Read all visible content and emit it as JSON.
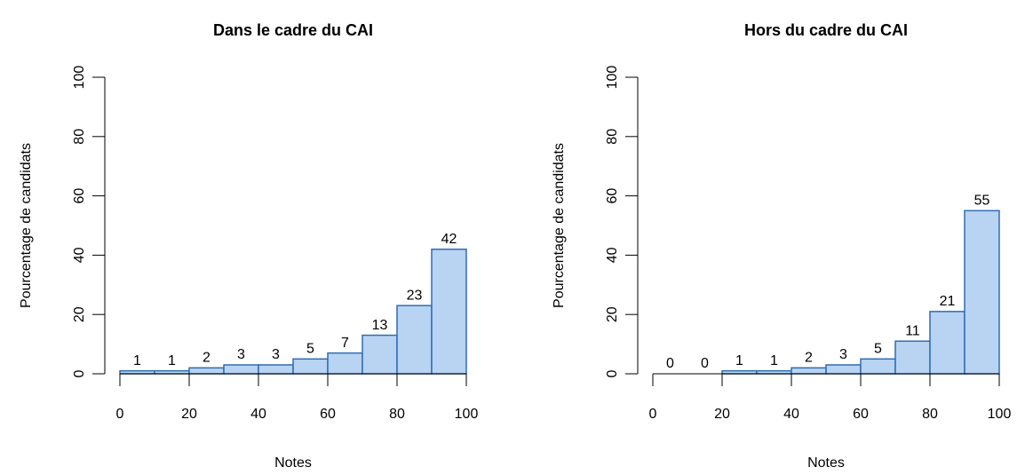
{
  "chart_data": [
    {
      "type": "histogram",
      "title": "Dans le cadre du CAI",
      "x_label": "Notes",
      "y_label": "Pourcentage de candidats",
      "bins": [
        0,
        10,
        20,
        30,
        40,
        50,
        60,
        70,
        80,
        90,
        100
      ],
      "values": [
        1,
        1,
        2,
        3,
        3,
        5,
        7,
        13,
        23,
        42
      ],
      "xlim": [
        0,
        100
      ],
      "ylim": [
        0,
        100
      ],
      "xticks": [
        0,
        20,
        40,
        60,
        80,
        100
      ],
      "yticks": [
        0,
        20,
        40,
        60,
        80,
        100
      ],
      "color": "#b9d3f3",
      "edge_color": "#2e6db4"
    },
    {
      "type": "histogram",
      "title": "Hors du cadre du CAI",
      "x_label": "Notes",
      "y_label": "Pourcentage de candidats",
      "bins": [
        0,
        10,
        20,
        30,
        40,
        50,
        60,
        70,
        80,
        90,
        100
      ],
      "values": [
        0,
        0,
        1,
        1,
        2,
        3,
        5,
        11,
        21,
        55
      ],
      "xlim": [
        0,
        100
      ],
      "ylim": [
        0,
        100
      ],
      "xticks": [
        0,
        20,
        40,
        60,
        80,
        100
      ],
      "yticks": [
        0,
        20,
        40,
        60,
        80,
        100
      ],
      "color": "#b9d3f3",
      "edge_color": "#2e6db4"
    }
  ]
}
